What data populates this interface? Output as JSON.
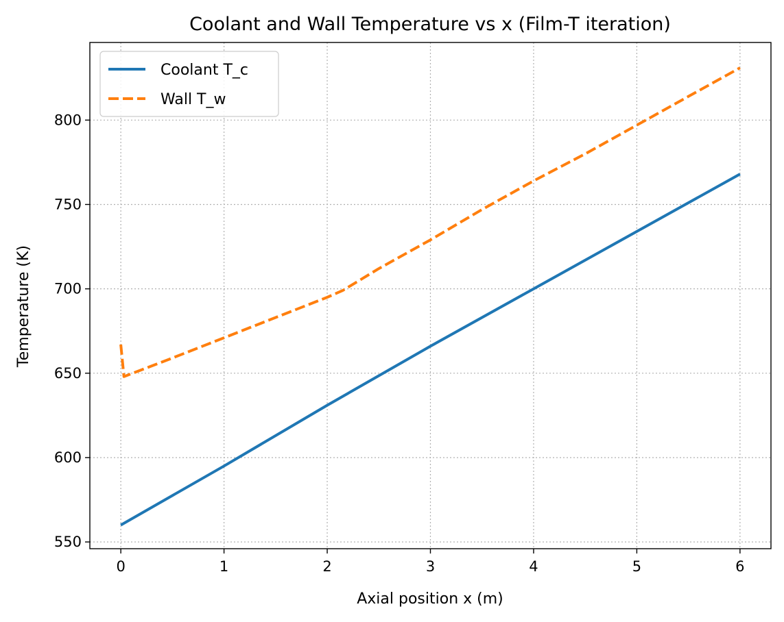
{
  "chart_data": {
    "type": "line",
    "title": "Coolant and Wall Temperature vs x (Film-T iteration)",
    "xlabel": "Axial position x (m)",
    "ylabel": "Temperature (K)",
    "xlim": [
      -0.3,
      6.3
    ],
    "ylim": [
      546,
      846
    ],
    "xticks": [
      0,
      1,
      2,
      3,
      4,
      5,
      6
    ],
    "yticks": [
      550,
      600,
      650,
      700,
      750,
      800
    ],
    "grid": true,
    "legend_position": "top-left",
    "series": [
      {
        "name": "Coolant T_c",
        "color": "#1f77b4",
        "style": "solid",
        "x": [
          0,
          1,
          2,
          3,
          4,
          5,
          6
        ],
        "y": [
          560,
          595,
          631,
          666,
          700,
          734,
          768
        ]
      },
      {
        "name": "Wall T_w",
        "color": "#ff7f0e",
        "style": "dashed",
        "x": [
          0,
          0.03,
          0.5,
          1,
          1.5,
          2,
          2.15,
          2.5,
          3,
          3.5,
          4,
          4.5,
          5,
          5.5,
          6
        ],
        "y": [
          667,
          648,
          659,
          671,
          683,
          695,
          699,
          712,
          729,
          747,
          764,
          780,
          797,
          814,
          831
        ]
      }
    ]
  }
}
